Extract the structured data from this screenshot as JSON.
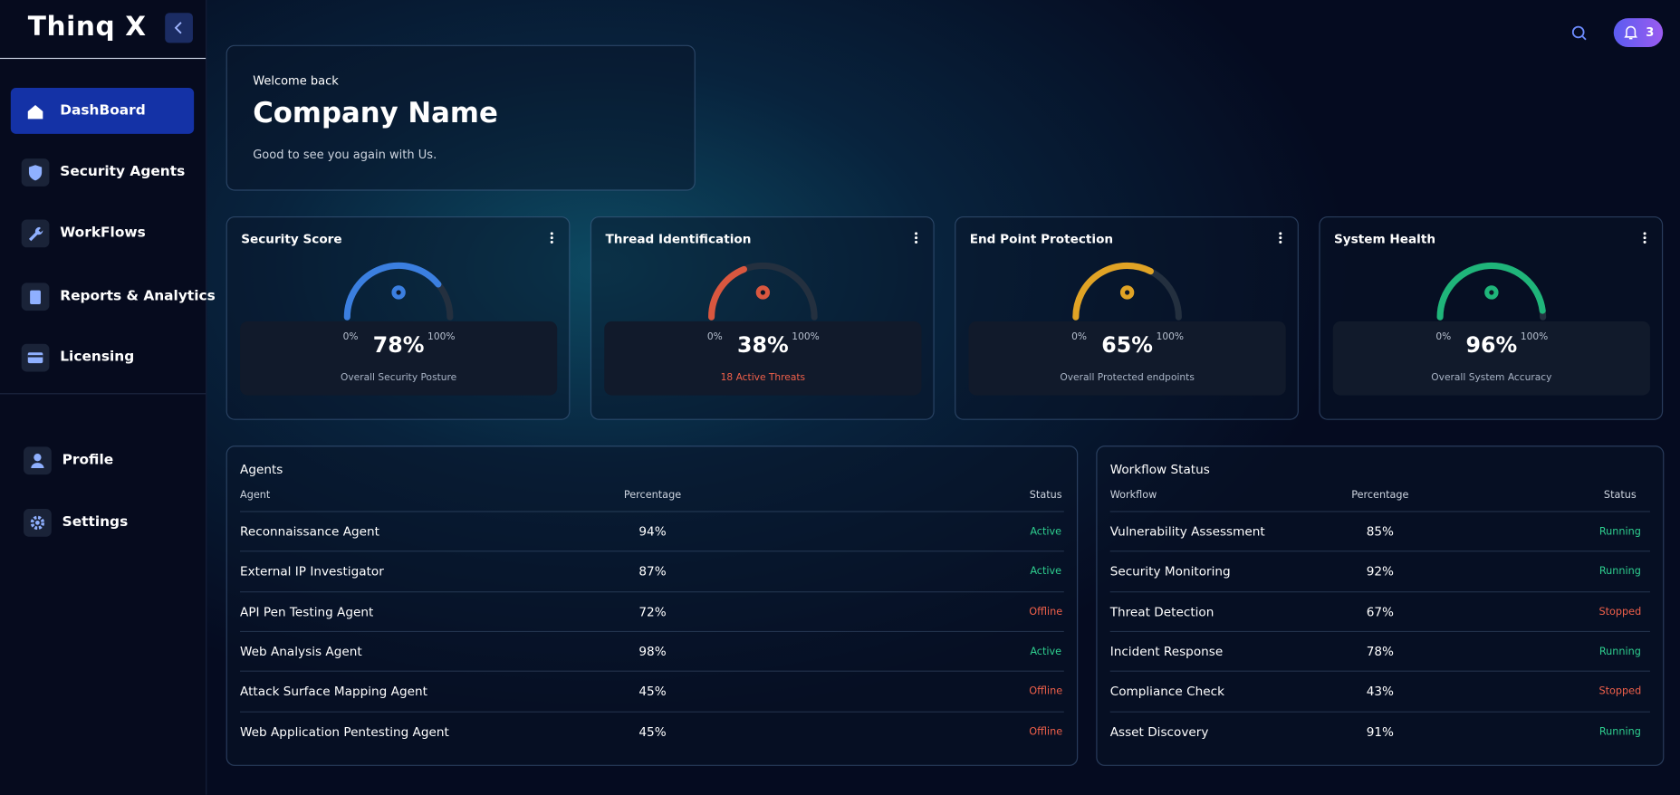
{
  "sidebar": {
    "brand": "Thinq X",
    "nav": [
      "DashBoard",
      "Security Agents",
      "WorkFlows",
      "Reports & Analytics",
      "Licensing"
    ],
    "account": [
      "Profile",
      "Settings"
    ]
  },
  "header": {
    "notifications": 3
  },
  "welcome": {
    "greeting": "Welcome back",
    "company": "Company Name",
    "message": "Good to see you again with Us."
  },
  "gauges": [
    {
      "title": "Security Score",
      "value": 78,
      "value_label": "78%",
      "min_label": "0%",
      "max_label": "100%",
      "caption": "Overall Security Posture",
      "color": "#3b7fe0",
      "caption_color": "#a9b4c6"
    },
    {
      "title": "Thread Identification",
      "value": 38,
      "value_label": "38%",
      "min_label": "0%",
      "max_label": "100%",
      "caption": "18 Active Threats",
      "color": "#d9573f",
      "caption_color": "#f0604a"
    },
    {
      "title": "End Point Protection",
      "value": 65,
      "value_label": "65%",
      "min_label": "0%",
      "max_label": "100%",
      "caption": "Overall Protected endpoints",
      "color": "#e0a325",
      "caption_color": "#a9b4c6"
    },
    {
      "title": "System Health",
      "value": 96,
      "value_label": "96%",
      "min_label": "0%",
      "max_label": "100%",
      "caption": "Overall System Accuracy",
      "color": "#1fb57a",
      "caption_color": "#a9b4c6"
    }
  ],
  "agents": {
    "title": "Agents",
    "columns": [
      "Agent",
      "Percentage",
      "Status"
    ],
    "rows": [
      {
        "name": "Reconnaissance Agent",
        "percentage": "94%",
        "status": "Active",
        "status_color": "#2ecf8f"
      },
      {
        "name": "External IP Investigator",
        "percentage": "87%",
        "status": "Active",
        "status_color": "#2ecf8f"
      },
      {
        "name": "API Pen Testing Agent",
        "percentage": "72%",
        "status": "Offline",
        "status_color": "#f0604a"
      },
      {
        "name": "Web Analysis Agent",
        "percentage": "98%",
        "status": "Active",
        "status_color": "#2ecf8f"
      },
      {
        "name": "Attack Surface Mapping Agent",
        "percentage": "45%",
        "status": "Offline",
        "status_color": "#f0604a"
      },
      {
        "name": "Web Application Pentesting Agent",
        "percentage": "45%",
        "status": "Offline",
        "status_color": "#f0604a"
      }
    ]
  },
  "workflows": {
    "title": "Workflow Status",
    "columns": [
      "Workflow",
      "Percentage",
      "Status"
    ],
    "rows": [
      {
        "name": "Vulnerability Assessment",
        "percentage": "85%",
        "status": "Running",
        "status_color": "#2ecf8f"
      },
      {
        "name": "Security Monitoring",
        "percentage": "92%",
        "status": "Running",
        "status_color": "#2ecf8f"
      },
      {
        "name": "Threat Detection",
        "percentage": "67%",
        "status": "Stopped",
        "status_color": "#f0604a"
      },
      {
        "name": "Incident Response",
        "percentage": "78%",
        "status": "Running",
        "status_color": "#2ecf8f"
      },
      {
        "name": "Compliance Check",
        "percentage": "43%",
        "status": "Stopped",
        "status_color": "#f0604a"
      },
      {
        "name": "Asset Discovery",
        "percentage": "91%",
        "status": "Running",
        "status_color": "#2ecf8f"
      }
    ]
  }
}
